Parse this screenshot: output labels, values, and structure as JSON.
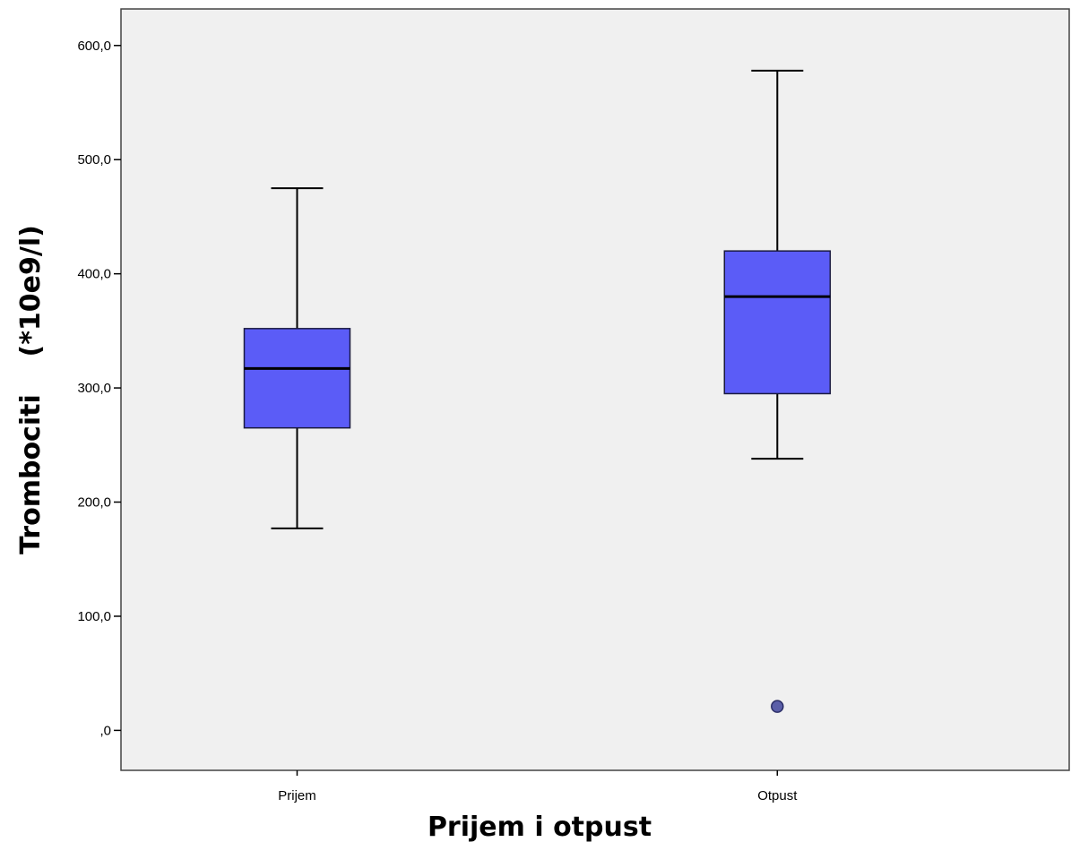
{
  "chart_data": {
    "type": "boxplot",
    "title": "",
    "xlabel": "Prijem i otpust",
    "ylabel": "Trombociti    (*10e9/l)",
    "ylim": [
      -35,
      632
    ],
    "y_ticks": [
      0,
      100,
      200,
      300,
      400,
      500,
      600
    ],
    "y_tick_labels": [
      ",0",
      "100,0",
      "200,0",
      "300,0",
      "400,0",
      "500,0",
      "600,0"
    ],
    "categories": [
      "Prijem",
      "Otpust"
    ],
    "boxes": [
      {
        "category": "Prijem",
        "whisker_low": 177,
        "q1": 265,
        "median": 317,
        "q3": 352,
        "whisker_high": 475,
        "outliers": []
      },
      {
        "category": "Otpust",
        "whisker_low": 238,
        "q1": 295,
        "median": 380,
        "q3": 420,
        "whisker_high": 578,
        "outliers": [
          21
        ]
      }
    ],
    "box_color": "#5b5cf7",
    "outlier_color": "#5a5ea8",
    "plot_background": "#f0f0f0",
    "grid": false,
    "legend": "none"
  }
}
